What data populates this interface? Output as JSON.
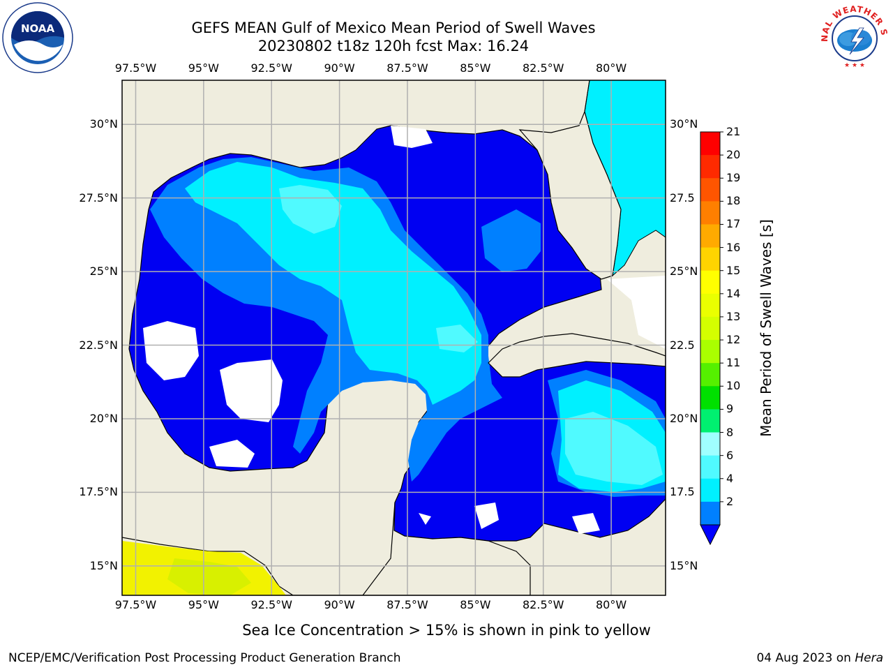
{
  "title": {
    "line1": "GEFS MEAN Gulf of Mexico Mean Period of Swell Waves",
    "line2": "20230802 t18z 120h fcst   Max: 16.24"
  },
  "map": {
    "lon_ticks": [
      "97.5°W",
      "95°W",
      "92.5°W",
      "90°W",
      "87.5°W",
      "85°W",
      "82.5°W",
      "80°W"
    ],
    "lat_ticks_left": [
      "30°N",
      "27.5°N",
      "25°N",
      "22.5°N",
      "20°N",
      "17.5°N",
      "15°N"
    ],
    "lat_ticks_right": [
      "30°N",
      "27.5",
      "25°N",
      "22.5",
      "20°N",
      "17.5",
      "15°N"
    ],
    "lon_range": [
      -98,
      -78
    ],
    "lat_range": [
      14,
      31.5
    ],
    "colors": {
      "land": "#efedde",
      "ocean_2_4": "#0000f2",
      "ocean_4_6": "#0080ff",
      "ocean_6_8": "#00f0ff",
      "ocean_8_9": "#50faff",
      "ice_yellow": "#f2f200",
      "grid": "#b0b0b0"
    }
  },
  "colorbar": {
    "title": "Mean Period of Swell Waves [s]",
    "labels": [
      "21",
      "20",
      "19",
      "18",
      "17",
      "16",
      "15",
      "14",
      "13",
      "12",
      "11",
      "10",
      "9",
      "8",
      "6",
      "4",
      "2"
    ],
    "colors": [
      "#ff0000",
      "#ff2a00",
      "#ff5500",
      "#ff7f00",
      "#ffaa00",
      "#ffd400",
      "#ffff00",
      "#eaff00",
      "#d4ff00",
      "#aaff00",
      "#55f000",
      "#00e000",
      "#00f070",
      "#a0ffff",
      "#50faff",
      "#00f0ff",
      "#0080ff"
    ],
    "extend_color": "#0000ff"
  },
  "caption": "Sea Ice Concentration > 15% is shown in pink to yellow",
  "footer": {
    "left": "NCEP/EMC/Verification Post Processing Product Generation Branch",
    "right_date": "04 Aug 2023 on ",
    "right_host": "Hera"
  },
  "logos": {
    "left": "NOAA",
    "right": "NATIONAL WEATHER SERVICE"
  }
}
